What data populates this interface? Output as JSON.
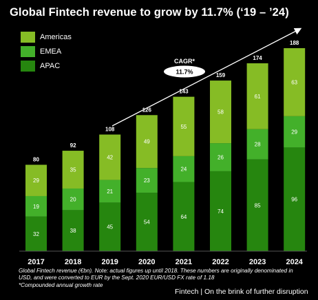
{
  "title": "Global Fintech revenue to grow by 11.7% (‘19 – ’24)",
  "cagr": {
    "label": "CAGR*",
    "value": "11.7%"
  },
  "note_lines": [
    "Global Fintech revenue (€bn). Note: actual figures up until 2018. These numbers are originally denominated in",
    "USD, and were converted to EUR by the Sept. 2020 EUR/USD FX rate of 1.18",
    "*Compounded annual growth rate"
  ],
  "footer": "Fintech | On the brink of further disruption",
  "chart_data": {
    "type": "bar",
    "stacked": true,
    "categories": [
      "2017",
      "2018",
      "2019",
      "2020",
      "2021",
      "2022",
      "2023",
      "2024"
    ],
    "series": [
      {
        "name": "APAC",
        "color": "#26860f",
        "values": [
          32,
          38,
          45,
          54,
          64,
          74,
          85,
          96
        ]
      },
      {
        "name": "EMEA",
        "color": "#43b02a",
        "values": [
          19,
          20,
          21,
          23,
          24,
          26,
          28,
          29
        ]
      },
      {
        "name": "Americas",
        "color": "#86bc25",
        "values": [
          29,
          35,
          42,
          49,
          55,
          58,
          61,
          63
        ]
      }
    ],
    "totals": [
      80,
      92,
      108,
      126,
      143,
      159,
      174,
      188
    ],
    "legend": [
      "Americas",
      "EMEA",
      "APAC"
    ],
    "ylim": [
      0,
      188
    ],
    "title": "Global Fintech revenue to grow by 11.7% (‘19 – ’24)",
    "xlabel": "",
    "ylabel": ""
  }
}
